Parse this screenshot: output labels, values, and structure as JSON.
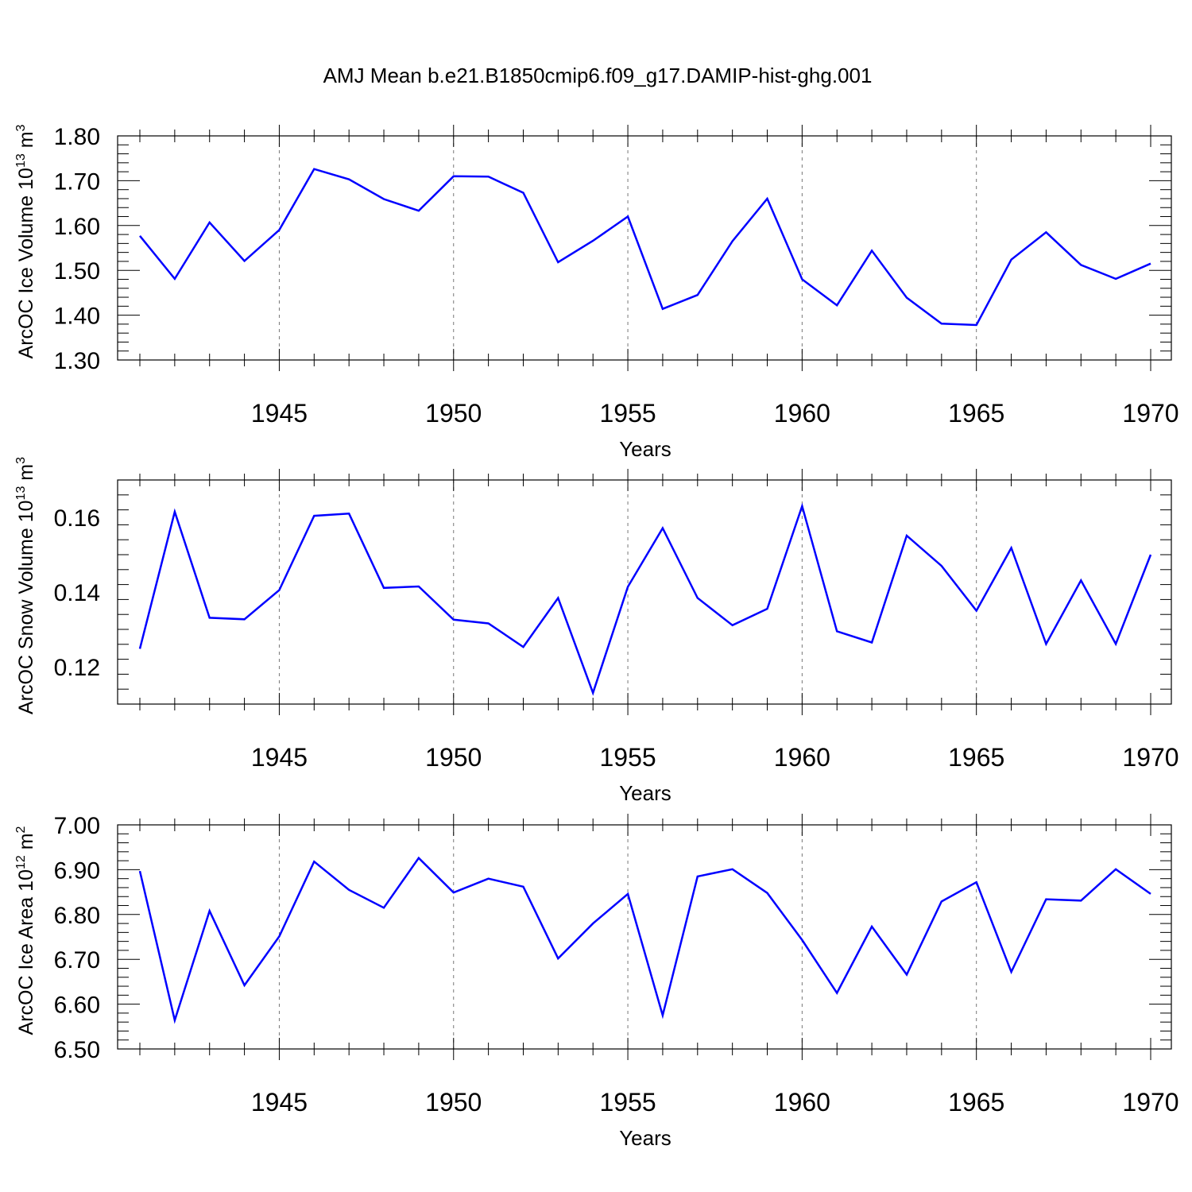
{
  "chart_data": [
    {
      "type": "line",
      "title": "AMJ Mean b.e21.B1850cmip6.f09_g17.DAMIP-hist-ghg.001",
      "xlabel": "Years",
      "ylabel": "ArcOC Ice Volume 10",
      "ylabel_exp": "13",
      "ylabel_unit": " m",
      "ylabel_unit_exp": "3",
      "xlim": [
        1941,
        1970
      ],
      "ylim": [
        1.3,
        1.8
      ],
      "yticks": [
        "1.30",
        "1.40",
        "1.50",
        "1.60",
        "1.70",
        "1.80"
      ],
      "xticks": [
        "1945",
        "1950",
        "1955",
        "1960",
        "1965",
        "1970"
      ],
      "grid_x": [
        1945,
        1950,
        1955,
        1960,
        1965
      ],
      "color": "#0000ff",
      "x": [
        1941,
        1942,
        1943,
        1944,
        1945,
        1946,
        1947,
        1948,
        1949,
        1950,
        1951,
        1952,
        1953,
        1954,
        1955,
        1956,
        1957,
        1958,
        1959,
        1960,
        1961,
        1962,
        1963,
        1964,
        1965,
        1966,
        1967,
        1968,
        1969,
        1970
      ],
      "values": [
        1.577,
        1.481,
        1.607,
        1.521,
        1.59,
        1.726,
        1.703,
        1.659,
        1.633,
        1.71,
        1.709,
        1.673,
        1.518,
        1.566,
        1.62,
        1.414,
        1.445,
        1.565,
        1.66,
        1.48,
        1.422,
        1.544,
        1.439,
        1.381,
        1.378,
        1.524,
        1.585,
        1.512,
        1.481,
        1.515
      ]
    },
    {
      "type": "line",
      "xlabel": "Years",
      "ylabel": "ArcOC Snow Volume 10",
      "ylabel_exp": "13",
      "ylabel_unit": " m",
      "ylabel_unit_exp": "3",
      "xlim": [
        1941,
        1970
      ],
      "ylim": [
        0.11,
        0.17
      ],
      "yticks": [
        "0.12",
        "0.14",
        "0.16"
      ],
      "xticks": [
        "1945",
        "1950",
        "1955",
        "1960",
        "1965",
        "1970"
      ],
      "grid_x": [
        1945,
        1950,
        1955,
        1960,
        1965
      ],
      "color": "#0000ff",
      "x": [
        1941,
        1942,
        1943,
        1944,
        1945,
        1946,
        1947,
        1948,
        1949,
        1950,
        1951,
        1952,
        1953,
        1954,
        1955,
        1956,
        1957,
        1958,
        1959,
        1960,
        1961,
        1962,
        1963,
        1964,
        1965,
        1966,
        1967,
        1968,
        1969,
        1970
      ],
      "values": [
        0.1248,
        0.1615,
        0.1331,
        0.1327,
        0.1405,
        0.1604,
        0.161,
        0.1411,
        0.1415,
        0.1326,
        0.1316,
        0.1253,
        0.1384,
        0.113,
        0.1414,
        0.1571,
        0.1384,
        0.1311,
        0.1355,
        0.163,
        0.1295,
        0.1265,
        0.1551,
        0.147,
        0.135,
        0.1518,
        0.1261,
        0.1431,
        0.1261,
        0.15
      ]
    },
    {
      "type": "line",
      "xlabel": "Years",
      "ylabel": "ArcOC Ice Area 10",
      "ylabel_exp": "12",
      "ylabel_unit": " m",
      "ylabel_unit_exp": "2",
      "xlim": [
        1941,
        1970
      ],
      "ylim": [
        6.5,
        7.0
      ],
      "yticks": [
        "6.50",
        "6.60",
        "6.70",
        "6.80",
        "6.90",
        "7.00"
      ],
      "xticks": [
        "1945",
        "1950",
        "1955",
        "1960",
        "1965",
        "1970"
      ],
      "grid_x": [
        1945,
        1950,
        1955,
        1960,
        1965
      ],
      "color": "#0000ff",
      "x": [
        1941,
        1942,
        1943,
        1944,
        1945,
        1946,
        1947,
        1948,
        1949,
        1950,
        1951,
        1952,
        1953,
        1954,
        1955,
        1956,
        1957,
        1958,
        1959,
        1960,
        1961,
        1962,
        1963,
        1964,
        1965,
        1966,
        1967,
        1968,
        1969,
        1970
      ],
      "values": [
        6.897,
        6.564,
        6.808,
        6.642,
        6.751,
        6.918,
        6.855,
        6.815,
        6.926,
        6.849,
        6.88,
        6.862,
        6.702,
        6.78,
        6.846,
        6.575,
        6.885,
        6.901,
        6.848,
        6.743,
        6.625,
        6.773,
        6.666,
        6.829,
        6.872,
        6.672,
        6.834,
        6.831,
        6.901,
        6.846
      ]
    }
  ]
}
